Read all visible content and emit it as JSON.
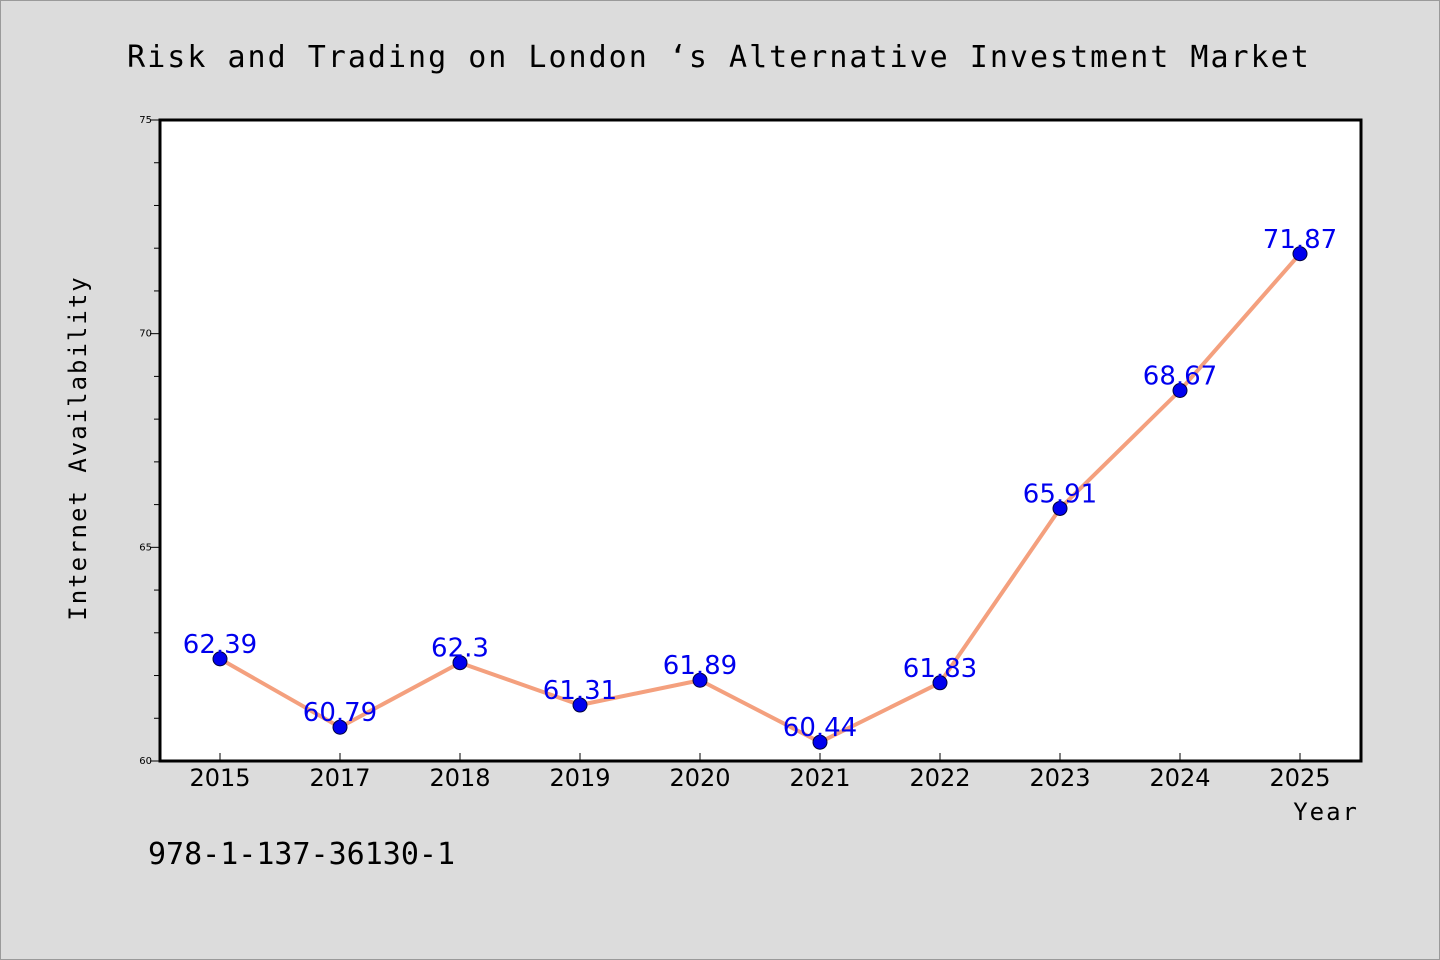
{
  "chart_data": {
    "type": "line",
    "title": "Risk and Trading on London ‘s Alternative Investment Market",
    "xlabel": "Year",
    "ylabel": "Internet Availability",
    "categories": [
      "2015",
      "2017",
      "2018",
      "2019",
      "2020",
      "2021",
      "2022",
      "2023",
      "2024",
      "2025"
    ],
    "series": [
      {
        "values": [
          62.39,
          60.79,
          62.3,
          61.31,
          61.89,
          60.44,
          61.83,
          65.91,
          68.67,
          71.87
        ],
        "labels": [
          "62.39",
          "60.79",
          "62.3",
          "61.31",
          "61.89",
          "60.44",
          "61.83",
          "65.91",
          "68.67",
          "71.87"
        ],
        "line_color": "#f4a07e",
        "marker_color": "#0000ee",
        "label_color": "#0000ee"
      }
    ],
    "ylim": [
      60,
      75
    ],
    "yticks": [
      60,
      65,
      70,
      75
    ],
    "ytick_labels": [
      "60",
      "65",
      "70",
      "75"
    ],
    "y_minor_step": 1,
    "grid": false,
    "legend": "none"
  },
  "footer": {
    "text": "978-1-137-36130-1"
  },
  "colors": {
    "background": "#dcdcdc",
    "plot_background": "#ffffff",
    "axes": "#000000"
  }
}
